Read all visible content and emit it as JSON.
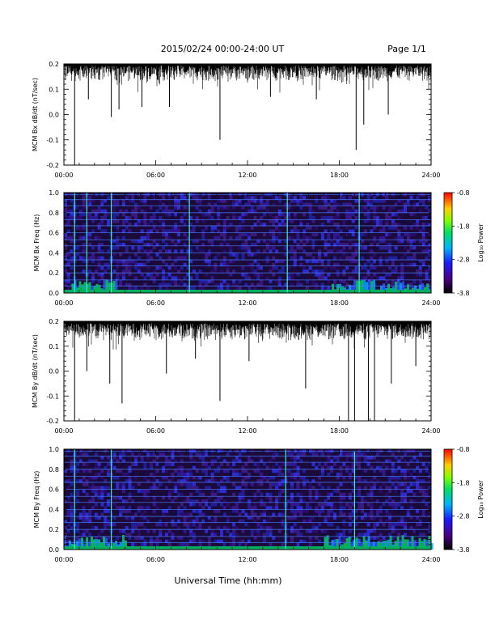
{
  "header": {
    "date_range": "2015/02/24  00:00-24:00 UT",
    "page": "Page 1/1"
  },
  "x_axis": {
    "title": "Universal Time (hh:mm)",
    "ticks": [
      "00:00",
      "06:00",
      "12:00",
      "18:00",
      "24:00"
    ]
  },
  "colorbar": {
    "label": "Log₁₀ Power",
    "ticks": [
      "-0.8",
      "-1.8",
      "-2.8",
      "-3.8"
    ],
    "range": [
      -3.8,
      -0.8
    ]
  },
  "chart_data": [
    {
      "type": "line",
      "ylabel": "MCM Bx dB/dt (nT/sec)",
      "xlim": [
        0,
        24
      ],
      "ylim": [
        -0.2,
        0.2
      ],
      "y_ticks": [
        "0.2",
        "0.1",
        "0.0",
        "-0.1",
        "-0.2"
      ],
      "baseline": 0.2,
      "typical_low": 0.13,
      "dips": [
        {
          "t": 0.7,
          "v": -0.2
        },
        {
          "t": 1.6,
          "v": 0.06
        },
        {
          "t": 3.1,
          "v": -0.01
        },
        {
          "t": 3.6,
          "v": 0.02
        },
        {
          "t": 5.1,
          "v": 0.03
        },
        {
          "t": 6.9,
          "v": 0.03
        },
        {
          "t": 10.2,
          "v": -0.1
        },
        {
          "t": 13.5,
          "v": 0.07
        },
        {
          "t": 16.5,
          "v": 0.06
        },
        {
          "t": 19.1,
          "v": -0.14
        },
        {
          "t": 19.6,
          "v": -0.04
        },
        {
          "t": 21.2,
          "v": 0.0
        }
      ]
    },
    {
      "type": "heatmap",
      "ylabel": "MCM Bx Freq (Hz)",
      "xlim": [
        0,
        24
      ],
      "ylim": [
        0.0,
        1.0
      ],
      "y_ticks": [
        "1.0",
        "0.8",
        "0.6",
        "0.4",
        "0.2",
        "0.0"
      ],
      "harmonic_lines_hz": [
        0.07,
        0.13,
        0.2,
        0.27,
        0.33,
        0.4,
        0.47,
        0.53,
        0.6,
        0.67,
        0.73,
        0.8,
        0.87,
        0.93,
        0.98
      ],
      "vertical_streaks_hours": [
        0.7,
        1.5,
        3.1,
        8.2,
        14.6,
        19.3
      ],
      "enhanced_low_freq_hours": [
        [
          0.5,
          3.5
        ],
        [
          17.5,
          24.0
        ]
      ]
    },
    {
      "type": "line",
      "ylabel": "MCM By dB/dt (nT/sec)",
      "xlim": [
        0,
        24
      ],
      "ylim": [
        -0.2,
        0.2
      ],
      "y_ticks": [
        "0.2",
        "0.1",
        "0.0",
        "-0.1",
        "-0.2"
      ],
      "baseline": 0.2,
      "typical_low": 0.12,
      "dips": [
        {
          "t": 0.7,
          "v": -0.2
        },
        {
          "t": 1.5,
          "v": 0.0
        },
        {
          "t": 3.0,
          "v": -0.05
        },
        {
          "t": 3.8,
          "v": -0.13
        },
        {
          "t": 6.7,
          "v": -0.01
        },
        {
          "t": 8.6,
          "v": 0.05
        },
        {
          "t": 10.2,
          "v": -0.12
        },
        {
          "t": 12.1,
          "v": 0.04
        },
        {
          "t": 15.8,
          "v": -0.07
        },
        {
          "t": 18.6,
          "v": -0.2
        },
        {
          "t": 19.0,
          "v": -0.2
        },
        {
          "t": 19.9,
          "v": -0.2
        },
        {
          "t": 20.3,
          "v": -0.2
        },
        {
          "t": 21.4,
          "v": -0.05
        },
        {
          "t": 23.0,
          "v": 0.02
        }
      ]
    },
    {
      "type": "heatmap",
      "ylabel": "MCM By Freq (Hz)",
      "xlim": [
        0,
        24
      ],
      "ylim": [
        0.0,
        1.0
      ],
      "y_ticks": [
        "1.0",
        "0.8",
        "0.6",
        "0.4",
        "0.2",
        "0.0"
      ],
      "harmonic_lines_hz": [
        0.07,
        0.13,
        0.2,
        0.27,
        0.33,
        0.4,
        0.47,
        0.53,
        0.6,
        0.67,
        0.73,
        0.8,
        0.87,
        0.93,
        0.98
      ],
      "vertical_streaks_hours": [
        0.7,
        3.1,
        14.5,
        19.0
      ],
      "enhanced_low_freq_hours": [
        [
          0.0,
          4.0
        ],
        [
          17.0,
          24.0
        ]
      ]
    }
  ]
}
